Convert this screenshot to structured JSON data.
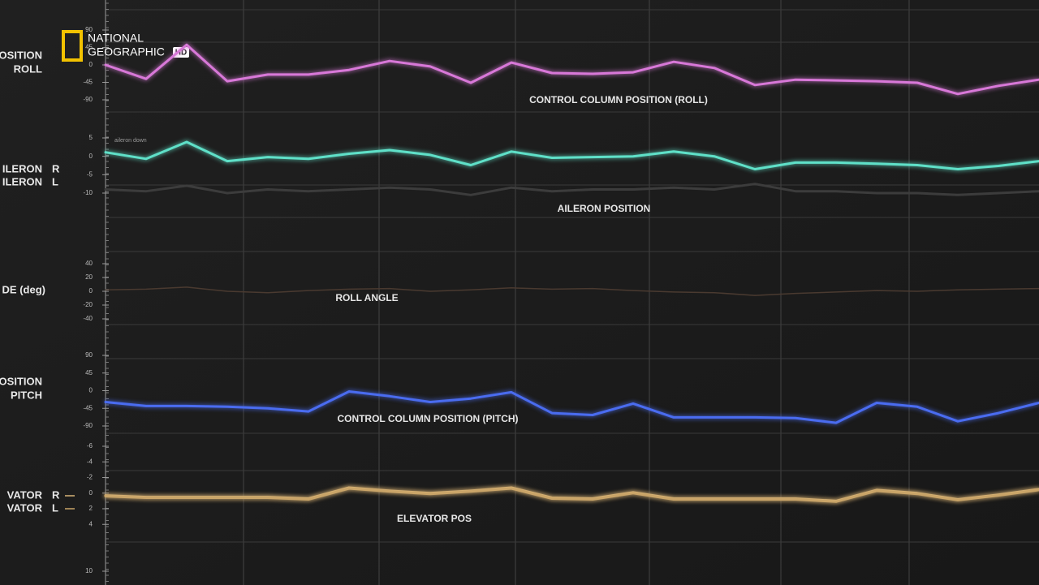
{
  "logo": {
    "line1": "NATIONAL",
    "line2": "GEOGRAPHIC",
    "badge": "HD"
  },
  "chart_data": [
    {
      "type": "line",
      "title": "CONTROL COLUMN POSITION (ROLL)",
      "side_labels": [
        "OSITION",
        "ROLL"
      ],
      "ylim": [
        -90,
        90
      ],
      "yticks": [
        90,
        45,
        0,
        -45,
        -90
      ],
      "series": [
        {
          "name": null,
          "color": "#d878d8",
          "values": [
            0,
            -36,
            52,
            -42,
            -25,
            -25,
            -13,
            10,
            -4,
            -46,
            6,
            -21,
            -23,
            -19,
            8,
            -8,
            -52,
            -38,
            -40,
            -42,
            -46,
            -75,
            -54,
            -38
          ]
        }
      ]
    },
    {
      "type": "line",
      "title": "AILERON POSITION",
      "side_labels": [
        "ILERON",
        "ILERON"
      ],
      "annotation": "aileron down",
      "ylim": [
        -10,
        5
      ],
      "yticks": [
        5,
        0,
        -5,
        -10
      ],
      "series": [
        {
          "name": "R",
          "color": "#5fe0c8",
          "values": [
            1.1,
            -0.7,
            3.9,
            -1.3,
            -0.2,
            -0.7,
            0.7,
            1.7,
            0.4,
            -2.4,
            1.3,
            -0.4,
            -0.2,
            0,
            1.3,
            0,
            -3.5,
            -1.7,
            -1.7,
            -2,
            -2.4,
            -3.5,
            -2.6,
            -1.3
          ]
        },
        {
          "name": "L",
          "color": "#3c3c3c",
          "values": [
            -9,
            -9.5,
            -8,
            -10,
            -9,
            -9.5,
            -9,
            -8.5,
            -9,
            -10.5,
            -8.5,
            -9.5,
            -9,
            -9,
            -8.5,
            -9,
            -7.5,
            -9.5,
            -9.5,
            -10,
            -10,
            -10.5,
            -10,
            -9.5
          ]
        }
      ]
    },
    {
      "type": "line",
      "title": "ROLL ANGLE",
      "side_labels": [
        "DE (deg)"
      ],
      "ylim": [
        -40,
        40
      ],
      "yticks": [
        40,
        20,
        0,
        -20,
        -40
      ],
      "series": [
        {
          "name": null,
          "color": "#4a3a30",
          "values": [
            2,
            3,
            6,
            0,
            -2,
            1,
            3,
            4,
            0,
            2,
            5,
            3,
            4,
            1,
            -1,
            -2,
            -6,
            -3,
            -1,
            1,
            0,
            2,
            3,
            4
          ]
        }
      ]
    },
    {
      "type": "line",
      "title": "CONTROL COLUMN POSITION (PITCH)",
      "side_labels": [
        "OSITION",
        "PITCH"
      ],
      "ylim": [
        -90,
        90
      ],
      "yticks": [
        90,
        45,
        0,
        -45,
        -90
      ],
      "series": [
        {
          "name": null,
          "color": "#4a6cf0",
          "values": [
            -29,
            -39,
            -39,
            -41,
            -45,
            -53,
            -2,
            -14,
            -29,
            -20,
            -4,
            -57,
            -62,
            -33,
            -68,
            -68,
            -68,
            -70,
            -82,
            -31,
            -41,
            -78,
            -57,
            -31
          ]
        }
      ]
    },
    {
      "type": "line",
      "title": "ELEVATOR POS",
      "side_labels": [
        "VATOR",
        "VATOR"
      ],
      "ylim": [
        10,
        -6
      ],
      "yticks": [
        -6,
        -4,
        -2,
        0,
        2,
        4,
        10
      ],
      "series": [
        {
          "name": "R",
          "color": "#d8b478",
          "values": [
            0.3,
            0.5,
            0.5,
            0.5,
            0.5,
            0.7,
            -0.7,
            -0.3,
            0,
            -0.3,
            -0.7,
            0.6,
            0.7,
            -0.1,
            0.7,
            0.7,
            0.7,
            0.7,
            1,
            -0.4,
            0,
            0.8,
            0.2,
            -0.5
          ]
        },
        {
          "name": "L",
          "color": "#c9a468",
          "values": [
            0.4,
            0.6,
            0.6,
            0.6,
            0.6,
            0.8,
            -0.6,
            -0.2,
            0.1,
            -0.2,
            -0.6,
            0.7,
            0.8,
            0,
            0.8,
            0.8,
            0.8,
            0.8,
            1.1,
            -0.3,
            0.1,
            0.9,
            0.3,
            -0.4
          ]
        }
      ]
    }
  ]
}
